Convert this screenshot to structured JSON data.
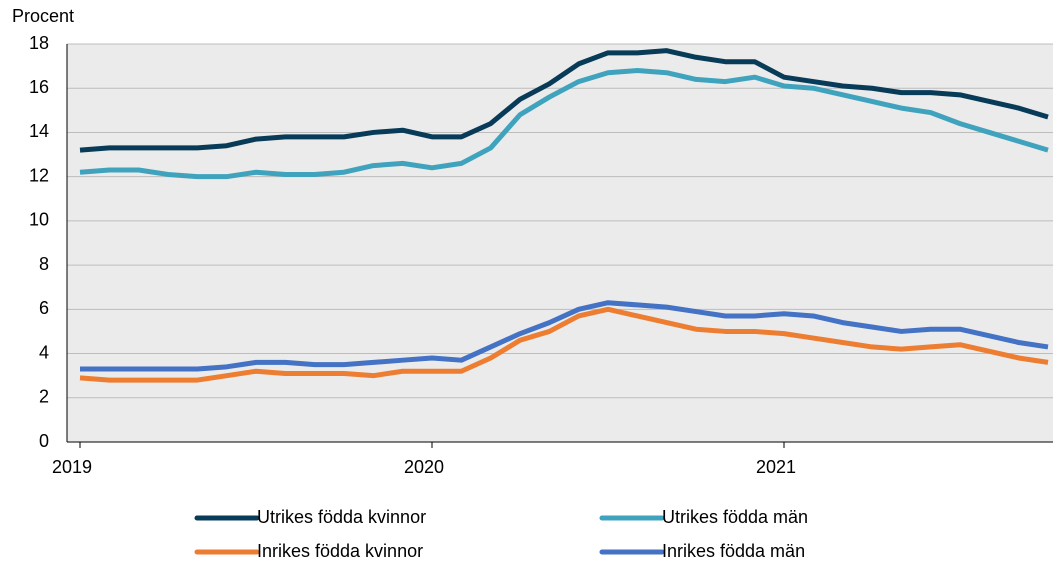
{
  "chart_data": {
    "type": "line",
    "y_label": "Procent",
    "categories": [
      "2019",
      null,
      null,
      null,
      null,
      null,
      null,
      null,
      null,
      null,
      null,
      null,
      "2020",
      null,
      null,
      null,
      null,
      null,
      null,
      null,
      null,
      null,
      null,
      null,
      "2021",
      null,
      null,
      null,
      null,
      null,
      null,
      null,
      null,
      null
    ],
    "series": [
      {
        "name": "Utrikes födda kvinnor",
        "color": "#083b58",
        "values": [
          13.2,
          13.3,
          13.3,
          13.3,
          13.3,
          13.4,
          13.7,
          13.8,
          13.8,
          13.8,
          14.0,
          14.1,
          13.8,
          13.8,
          14.4,
          15.5,
          16.2,
          17.1,
          17.6,
          17.6,
          17.7,
          17.4,
          17.2,
          17.2,
          16.5,
          16.3,
          16.1,
          16.0,
          15.8,
          15.8,
          15.7,
          15.4,
          15.1,
          14.7
        ]
      },
      {
        "name": "Utrikes födda män",
        "color": "#3fa3be",
        "values": [
          12.2,
          12.3,
          12.3,
          12.1,
          12.0,
          12.0,
          12.2,
          12.1,
          12.1,
          12.2,
          12.5,
          12.6,
          12.4,
          12.6,
          13.3,
          14.8,
          15.6,
          16.3,
          16.7,
          16.8,
          16.7,
          16.4,
          16.3,
          16.5,
          16.1,
          16.0,
          15.7,
          15.4,
          15.1,
          14.9,
          14.4,
          14.0,
          13.6,
          13.2
        ]
      },
      {
        "name": "Inrikes födda kvinnor",
        "color": "#ed7d31",
        "values": [
          2.9,
          2.8,
          2.8,
          2.8,
          2.8,
          3.0,
          3.2,
          3.1,
          3.1,
          3.1,
          3.0,
          3.2,
          3.2,
          3.2,
          3.8,
          4.6,
          5.0,
          5.7,
          6.0,
          5.7,
          5.4,
          5.1,
          5.0,
          5.0,
          4.9,
          4.7,
          4.5,
          4.3,
          4.2,
          4.3,
          4.4,
          4.1,
          3.8,
          3.6
        ]
      },
      {
        "name": "Inrikes födda män",
        "color": "#4472c4",
        "values": [
          3.3,
          3.3,
          3.3,
          3.3,
          3.3,
          3.4,
          3.6,
          3.6,
          3.5,
          3.5,
          3.6,
          3.7,
          3.8,
          3.7,
          4.3,
          4.9,
          5.4,
          6.0,
          6.3,
          6.2,
          6.1,
          5.9,
          5.7,
          5.7,
          5.8,
          5.7,
          5.4,
          5.2,
          5.0,
          5.1,
          5.1,
          4.8,
          4.5,
          4.3
        ]
      }
    ],
    "ylim": [
      0,
      18
    ],
    "yticks": [
      0,
      2,
      4,
      6,
      8,
      10,
      12,
      14,
      16,
      18
    ],
    "grid": true
  }
}
